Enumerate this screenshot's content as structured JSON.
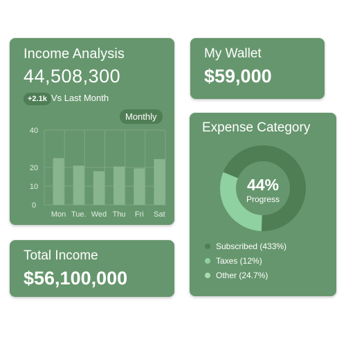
{
  "colors": {
    "card": "#66966d",
    "bar": "#89b58e",
    "grid": "#7ea784",
    "donut_dark": "#4f7e55",
    "donut_light": "#8fd1a0",
    "legend_dark": "#4f7e55",
    "legend_mid": "#8fd1a0",
    "legend_light": "#a6dcb1"
  },
  "income_analysis": {
    "title": "Income Analysis",
    "value": "44,508,300",
    "delta": "+2.1k",
    "delta_label": "Vs Last Month",
    "period": "Monthly"
  },
  "wallet": {
    "title": "My Wallet",
    "value": "$59,000"
  },
  "total_income": {
    "title": "Total Income",
    "value": "$56,100,000"
  },
  "expense": {
    "title": "Expense Category",
    "percent": "44%",
    "percent_label": "Progress",
    "legend": [
      {
        "label": "Subscribed (433%)",
        "icon": "dot-dark"
      },
      {
        "label": "Taxes (12%)",
        "icon": "dot-mid"
      },
      {
        "label": "Other (24.7%)",
        "icon": "dot-light"
      }
    ]
  },
  "chart_data": [
    {
      "type": "bar",
      "categories": [
        "Mon",
        "Tue.",
        "Wed",
        "Thu",
        "Fri",
        "Sat"
      ],
      "values": [
        25,
        21,
        18,
        20.5,
        19.5,
        24.5
      ],
      "ylim": [
        0,
        40
      ],
      "yticks": [
        "0",
        "10",
        "20",
        "40"
      ],
      "grid": true
    },
    {
      "type": "pie",
      "donut": true,
      "slices": [
        {
          "label": "Progress",
          "value": 44
        },
        {
          "label": "Remaining",
          "value": 56
        }
      ]
    }
  ]
}
